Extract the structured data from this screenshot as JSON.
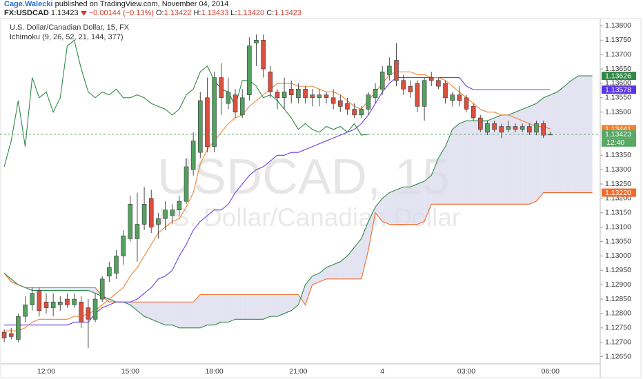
{
  "header": {
    "author": "Cage.Walecki",
    "published": "published on TradingView.com, November 04, 2014",
    "symbol": "FX:USDCAD",
    "last": "1.13423",
    "change": "−0.00144 (−0.13%)",
    "quote": [
      {
        "label": "O:",
        "value": "1.13422"
      },
      {
        "label": "H:",
        "value": "1.13433"
      },
      {
        "label": "L:",
        "value": "1.13420"
      },
      {
        "label": "C:",
        "value": "1.13423"
      }
    ]
  },
  "chart_data": {
    "type": "candlestick",
    "title": "U.S. Dollar/Canadian Dollar, 15, FX",
    "subtitle": "Ichimoku (9, 26, 52, 21, 144, 377)",
    "annotations": [
      "USDCAD, 15",
      "U.S. Dollar/Canadian Dollar"
    ],
    "up_color": "#53a05f",
    "down_color": "#d9503f",
    "wick_color": "#4a4a4a",
    "categories": [
      null,
      null,
      null,
      null,
      null,
      null,
      "12:00",
      null,
      null,
      null,
      null,
      null,
      null,
      null,
      null,
      null,
      null,
      null,
      "15:00",
      null,
      null,
      null,
      null,
      null,
      null,
      null,
      null,
      null,
      null,
      null,
      "18:00",
      null,
      null,
      null,
      null,
      null,
      null,
      null,
      null,
      null,
      null,
      null,
      "21:00",
      null,
      null,
      null,
      null,
      null,
      null,
      null,
      null,
      null,
      null,
      null,
      "4",
      null,
      null,
      null,
      null,
      null,
      null,
      null,
      null,
      null,
      null,
      null,
      "03:00",
      null,
      null,
      null,
      null,
      null,
      null,
      null,
      null,
      null,
      null,
      null,
      "06:00",
      null,
      null,
      null,
      null,
      null,
      null
    ],
    "open": [
      1.12735,
      1.1273,
      1.1271,
      1.1279,
      1.1283,
      1.1288,
      1.1284,
      1.1282,
      1.1283,
      1.1285,
      1.1283,
      1.1284,
      1.1282,
      1.1278,
      1.1285,
      1.1293,
      1.1294,
      1.13,
      1.1306,
      1.1306,
      1.1311,
      1.132,
      1.1311,
      1.1313,
      1.1314,
      1.1316,
      1.1319,
      1.133,
      1.1336,
      1.1355,
      1.1338,
      1.1362,
      1.1353,
      1.1356,
      1.1349,
      1.1356,
      1.1374,
      1.1375,
      1.1364,
      1.1357,
      1.1355,
      1.1358,
      1.1355,
      1.1358,
      1.1356,
      1.1355,
      1.1356,
      1.1355,
      1.1354,
      1.1353,
      1.1351,
      1.1349,
      1.1351,
      1.1355,
      1.1358,
      1.1363,
      1.1368,
      1.1361,
      1.1359,
      1.136,
      1.1352,
      1.1362,
      1.1361,
      1.136,
      1.1354,
      1.1356,
      1.1355,
      1.1352,
      1.1348,
      1.1343,
      1.1346,
      1.1345,
      1.1344,
      1.1345,
      1.1344,
      1.1345,
      1.1343,
      1.1346,
      1.13422,
      null,
      null,
      null,
      null,
      null,
      null
    ],
    "high": [
      1.12745,
      1.1275,
      1.128,
      1.1286,
      1.1289,
      1.1289,
      1.1287,
      1.1287,
      1.1286,
      1.1287,
      1.1287,
      1.1286,
      1.1285,
      1.1287,
      1.1293,
      1.1298,
      1.1302,
      1.1309,
      1.1321,
      1.1322,
      1.1324,
      1.1323,
      1.1315,
      1.1319,
      1.1318,
      1.1321,
      1.1334,
      1.1343,
      1.1357,
      1.1362,
      1.1364,
      1.1367,
      1.1362,
      1.1358,
      1.1358,
      1.1376,
      1.1377,
      1.1377,
      1.1366,
      1.1358,
      1.1362,
      1.1361,
      1.136,
      1.1359,
      1.1358,
      1.1358,
      1.1357,
      1.1358,
      1.1356,
      1.1355,
      1.1353,
      1.1352,
      1.1357,
      1.136,
      1.1366,
      1.1369,
      1.1374,
      1.1363,
      1.1361,
      1.1361,
      1.1362,
      1.1364,
      1.1362,
      1.1361,
      1.1357,
      1.1359,
      1.1356,
      1.1353,
      1.1349,
      1.1347,
      1.1347,
      1.1346,
      1.1347,
      1.1346,
      1.1346,
      1.1346,
      1.1347,
      1.1347,
      1.13433,
      null,
      null,
      null,
      null,
      null,
      null
    ],
    "low": [
      1.127,
      1.1271,
      1.127,
      1.1277,
      1.1281,
      1.1279,
      1.128,
      1.1279,
      1.1281,
      1.1282,
      1.1282,
      1.1275,
      1.1268,
      1.1277,
      1.1284,
      1.1291,
      1.1292,
      1.1297,
      1.1305,
      1.1298,
      1.1309,
      1.1308,
      1.1306,
      1.1309,
      1.1311,
      1.1314,
      1.1318,
      1.1328,
      1.1334,
      1.1336,
      1.1336,
      1.1349,
      1.1351,
      1.1348,
      1.1348,
      1.1354,
      1.1366,
      1.1362,
      1.1355,
      1.1351,
      1.1351,
      1.1353,
      1.1353,
      1.1353,
      1.1352,
      1.1352,
      1.1353,
      1.1351,
      1.135,
      1.1349,
      1.1348,
      1.1348,
      1.1349,
      1.1353,
      1.1356,
      1.1361,
      1.1359,
      1.1356,
      1.1355,
      1.135,
      1.1347,
      1.1359,
      1.1358,
      1.1353,
      1.1352,
      1.1352,
      1.135,
      1.1347,
      1.1343,
      1.1342,
      1.1343,
      1.1341,
      1.1343,
      1.1343,
      1.1343,
      1.1342,
      1.1342,
      1.1341,
      1.1342,
      null,
      null,
      null,
      null,
      null,
      null
    ],
    "close": [
      1.12715,
      1.1272,
      1.1279,
      1.1283,
      1.1287,
      1.1281,
      1.1282,
      1.1284,
      1.1284,
      1.1283,
      1.1285,
      1.1277,
      1.1278,
      1.1285,
      1.1292,
      1.1296,
      1.13,
      1.1307,
      1.1318,
      1.1311,
      1.1318,
      1.131,
      1.1313,
      1.1316,
      1.1316,
      1.1319,
      1.1331,
      1.134,
      1.1354,
      1.1338,
      1.1362,
      1.1355,
      1.1357,
      1.135,
      1.1355,
      1.1373,
      1.1375,
      1.1365,
      1.1357,
      1.1355,
      1.1357,
      1.1356,
      1.1358,
      1.1355,
      1.1355,
      1.1356,
      1.1355,
      1.1353,
      1.1352,
      1.1351,
      1.1349,
      1.1351,
      1.1356,
      1.1358,
      1.1364,
      1.1366,
      1.1361,
      1.1358,
      1.1357,
      1.1352,
      1.1361,
      1.1361,
      1.1359,
      1.1355,
      1.1356,
      1.1354,
      1.1351,
      1.1348,
      1.1344,
      1.1346,
      1.1344,
      1.1343,
      1.1345,
      1.1344,
      1.1345,
      1.1343,
      1.1346,
      1.1342,
      1.13423,
      null,
      null,
      null,
      null,
      null,
      null
    ],
    "ichimoku": {
      "cloud_color": "#dadaee",
      "span_b": {
        "color": "#f26a2a",
        "values": [
          1.1294,
          1.1291,
          1.129,
          1.1289,
          1.1289,
          1.1289,
          1.1289,
          1.1289,
          1.1289,
          1.1289,
          1.1289,
          1.1289,
          1.1289,
          1.1289,
          1.1286,
          1.1284,
          1.1284,
          1.1284,
          1.1284,
          1.1284,
          1.1284,
          1.1284,
          1.1284,
          1.1284,
          1.1284,
          1.1284,
          1.1284,
          1.1284,
          1.12866,
          1.12866,
          1.12866,
          1.12866,
          1.12866,
          1.12866,
          1.12866,
          1.12866,
          1.12866,
          1.12866,
          1.12866,
          1.12866,
          1.12866,
          1.12866,
          1.12866,
          1.1283,
          1.129,
          1.1291,
          1.1292,
          1.1292,
          1.1292,
          1.1292,
          1.1292,
          1.1292,
          1.1302,
          1.1315,
          1.1312,
          1.1311,
          1.1311,
          1.1311,
          1.1311,
          1.1311,
          1.1312,
          1.1318,
          1.1318,
          1.1318,
          1.1318,
          1.1318,
          1.1318,
          1.1318,
          1.1318,
          1.1318,
          1.1318,
          1.1318,
          1.1318,
          1.1318,
          1.1318,
          1.1318,
          1.1319,
          1.1322,
          1.1322,
          1.1322,
          1.1322,
          1.1322,
          1.1322,
          1.1322,
          1.1322
        ]
      },
      "span_a": {
        "color": "#2f8a45",
        "values": [
          1.1294,
          1.1292,
          1.129,
          1.1289,
          1.1288,
          1.1288,
          1.1288,
          1.1288,
          1.1288,
          1.1288,
          1.1288,
          1.1288,
          1.1288,
          1.1287,
          1.1286,
          1.1285,
          1.1284,
          1.1284,
          1.1283,
          1.1281,
          1.1279,
          1.1278,
          1.1277,
          1.1276,
          1.1276,
          1.1275,
          1.1275,
          1.1275,
          1.1275,
          1.1276,
          1.1276,
          1.1277,
          1.1277,
          1.1278,
          1.1278,
          1.1278,
          1.1278,
          1.1278,
          1.1279,
          1.1279,
          1.128,
          1.1281,
          1.1283,
          1.129,
          1.1293,
          1.1294,
          1.1296,
          1.1297,
          1.1298,
          1.13,
          1.1303,
          1.1306,
          1.1312,
          1.1317,
          1.132,
          1.1322,
          1.1323,
          1.1324,
          1.1324,
          1.1325,
          1.1326,
          1.1328,
          1.1334,
          1.1338,
          1.1344,
          1.1346,
          1.1347,
          1.1347,
          1.1347,
          1.1347,
          1.1348,
          1.1349,
          1.1349,
          1.135,
          1.1351,
          1.1352,
          1.1353,
          1.1355,
          1.1356,
          1.1357,
          1.1359,
          1.1361,
          1.13626,
          1.13626,
          1.13626
        ]
      },
      "base": {
        "color": "#6a3de8",
        "values": [
          1.1276,
          1.1276,
          1.1276,
          1.1276,
          1.1276,
          1.1276,
          1.1276,
          1.1276,
          1.1276,
          1.1276,
          1.1277,
          1.1277,
          1.1277,
          1.128,
          1.1282,
          1.1283,
          1.1284,
          1.1284,
          1.1284,
          1.1285,
          1.1287,
          1.1289,
          1.1292,
          1.1293,
          1.1295,
          1.13,
          1.1304,
          1.1309,
          1.1312,
          1.1314,
          1.1316,
          1.1316,
          1.1318,
          1.1322,
          1.1325,
          1.1328,
          1.133,
          1.1331,
          1.1333,
          1.1335,
          1.1335,
          1.1336,
          1.1336,
          1.1337,
          1.1338,
          1.1339,
          1.134,
          1.1341,
          1.1342,
          1.1343,
          1.1344,
          1.1346,
          1.1349,
          1.1353,
          1.1357,
          1.136,
          1.1362,
          1.1362,
          1.1362,
          1.1362,
          1.1362,
          1.1362,
          1.1362,
          1.1362,
          1.1362,
          1.1362,
          1.1359,
          1.13578,
          1.13578,
          1.13578,
          1.13578,
          1.13578,
          1.13578,
          1.13578,
          1.13578,
          1.13578,
          1.13578,
          1.13578,
          1.13578,
          null,
          null,
          null,
          null,
          null,
          null
        ]
      },
      "conversion": {
        "color": "#f58030",
        "values": [
          1.1274,
          1.1274,
          1.1274,
          1.1275,
          1.1277,
          1.1278,
          1.1278,
          1.1278,
          1.1278,
          1.1278,
          1.1279,
          1.1279,
          1.128,
          1.1281,
          1.1283,
          1.1285,
          1.1287,
          1.1289,
          1.1293,
          1.1296,
          1.13,
          1.1304,
          1.1308,
          1.131,
          1.1312,
          1.1313,
          1.1317,
          1.1322,
          1.1332,
          1.1337,
          1.134,
          1.1343,
          1.1346,
          1.1348,
          1.1349,
          1.1352,
          1.1354,
          1.1356,
          1.1358,
          1.136,
          1.136,
          1.136,
          1.1359,
          1.1359,
          1.1359,
          1.1358,
          1.1357,
          1.1357,
          1.1356,
          1.1354,
          1.1352,
          1.1351,
          1.1354,
          1.1357,
          1.136,
          1.1363,
          1.1364,
          1.1364,
          1.1364,
          1.1363,
          1.1363,
          1.1362,
          1.1362,
          1.1361,
          1.1359,
          1.1357,
          1.1355,
          1.1353,
          1.1351,
          1.135,
          1.135,
          1.1349,
          1.1349,
          1.1348,
          1.1347,
          1.1346,
          1.1345,
          1.1345,
          1.13441,
          null,
          null,
          null,
          null,
          null,
          null
        ]
      },
      "lagging": {
        "color": "#2f8a45",
        "values": [
          1.1331,
          1.134,
          1.1354,
          1.1338,
          1.1362,
          1.1355,
          1.1357,
          1.135,
          1.1355,
          1.1373,
          1.1375,
          1.1365,
          1.1357,
          1.1355,
          1.1357,
          1.1356,
          1.1358,
          1.1355,
          1.1355,
          1.1356,
          1.1355,
          1.1353,
          1.1352,
          1.1351,
          1.1349,
          1.1351,
          1.1356,
          1.1358,
          1.1364,
          1.1366,
          1.1361,
          1.1358,
          1.1357,
          1.1352,
          1.1361,
          1.1361,
          1.1359,
          1.1355,
          1.1356,
          1.1354,
          1.1351,
          1.1348,
          1.1344,
          1.1346,
          1.1344,
          1.1343,
          1.1345,
          1.1344,
          1.1345,
          1.1343,
          1.1346,
          1.1342,
          1.13423,
          null,
          null,
          null,
          null,
          null,
          null,
          null,
          null,
          null,
          null,
          null,
          null,
          null,
          null,
          null,
          null,
          null,
          null,
          null,
          null,
          null,
          null,
          null,
          null,
          null,
          null,
          null,
          null,
          null,
          null,
          null,
          null
        ]
      }
    },
    "ylim": [
      1.12625,
      1.13825
    ],
    "yticks": [
      {
        "value": 1.1265,
        "label": "1.12650"
      },
      {
        "value": 1.127,
        "label": "1.12700"
      },
      {
        "value": 1.1275,
        "label": "1.12750"
      },
      {
        "value": 1.128,
        "label": "1.12800"
      },
      {
        "value": 1.1285,
        "label": "1.12850"
      },
      {
        "value": 1.129,
        "label": "1.12900"
      },
      {
        "value": 1.1295,
        "label": "1.12950"
      },
      {
        "value": 1.13,
        "label": "1.13000"
      },
      {
        "value": 1.1305,
        "label": "1.13050"
      },
      {
        "value": 1.131,
        "label": "1.13100"
      },
      {
        "value": 1.1315,
        "label": "1.13150"
      },
      {
        "value": 1.132,
        "label": "1.13200"
      },
      {
        "value": 1.1325,
        "label": "1.13250"
      },
      {
        "value": 1.133,
        "label": "1.13300"
      },
      {
        "value": 1.1335,
        "label": "1.13350"
      },
      {
        "value": 1.135,
        "label": "1.13500"
      },
      {
        "value": 1.1355,
        "label": "1.13550"
      },
      {
        "value": 1.136,
        "label": "1.13600"
      },
      {
        "value": 1.1365,
        "label": "1.13650"
      },
      {
        "value": 1.137,
        "label": "1.13700"
      },
      {
        "value": 1.1375,
        "label": "1.13750"
      },
      {
        "value": 1.138,
        "label": "1.13800"
      }
    ],
    "price_labels": [
      {
        "value": 1.13626,
        "color": "#2f8a45"
      },
      {
        "value": 1.13578,
        "color": "#5a35e6"
      },
      {
        "value": 1.13441,
        "color": "#f58030"
      },
      {
        "value": 1.13423,
        "color": "#58a865",
        "dashed": true
      },
      {
        "value": 1.1322,
        "label": "1.13220",
        "color": "#f26a2a"
      }
    ],
    "countdown": "12:40"
  }
}
